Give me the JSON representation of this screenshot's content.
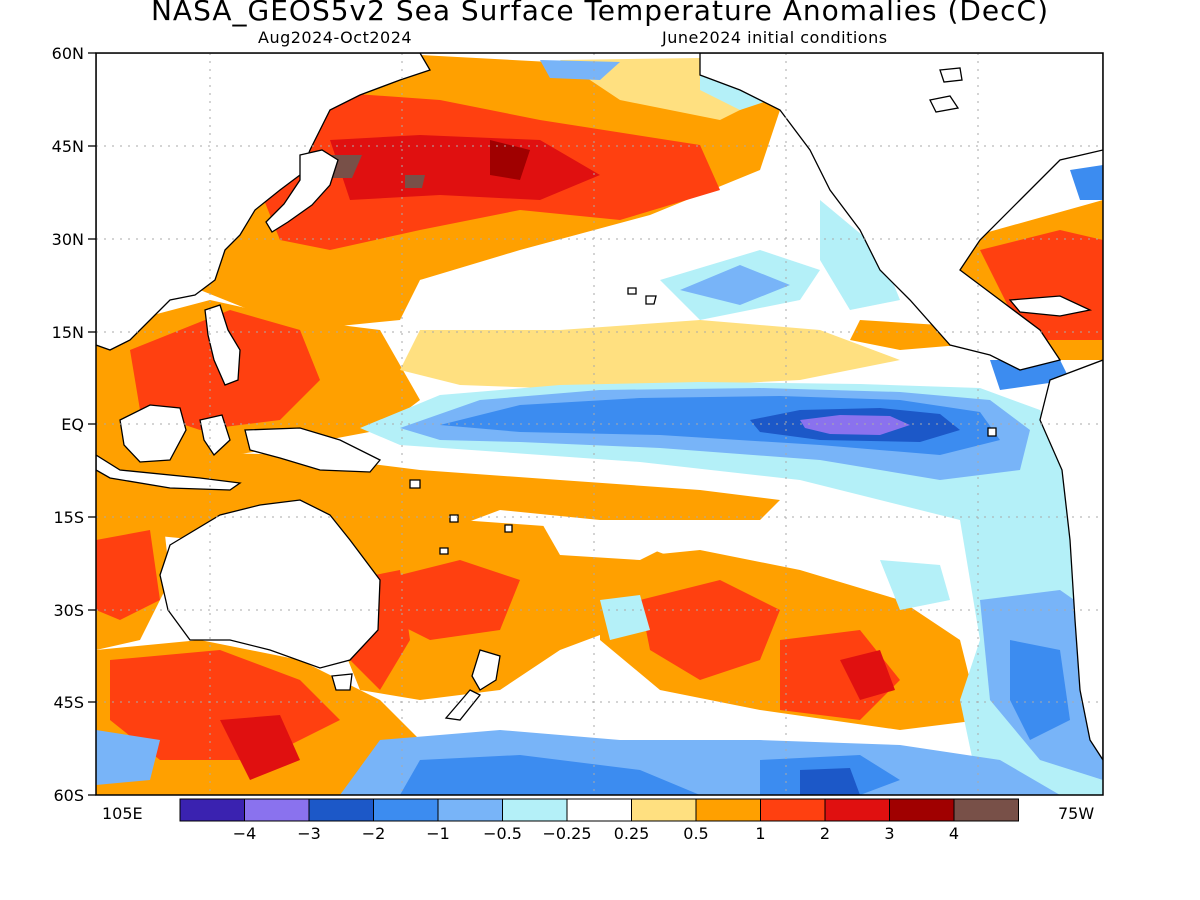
{
  "title": "NASA_GEOS5v2 Sea Surface Temperature Anomalies (DecC)",
  "subtitle_left": "Aug2024-Oct2024",
  "subtitle_right": "June2024 initial conditions",
  "lat_labels": [
    "60N",
    "45N",
    "30N",
    "15N",
    "EQ",
    "15S",
    "30S",
    "45S",
    "60S"
  ],
  "lon_label_left": "105E",
  "lon_label_right": "75W",
  "colorbar": {
    "colors": [
      "#3a22b0",
      "#8a72ee",
      "#1c58c8",
      "#3c8cf0",
      "#78b4f8",
      "#b4f0f8",
      "#ffffff",
      "#ffe080",
      "#ffa000",
      "#ff4010",
      "#e01010",
      "#a00000",
      "#785048"
    ],
    "labels": [
      "-4",
      "-3",
      "-2",
      "-1",
      "-0.5",
      "-0.25",
      "0.25",
      "0.5",
      "1",
      "2",
      "3",
      "4"
    ]
  },
  "colors": {
    "land": "#ffffff",
    "coast": "#000000",
    "grid": "#aaaaaa"
  }
}
